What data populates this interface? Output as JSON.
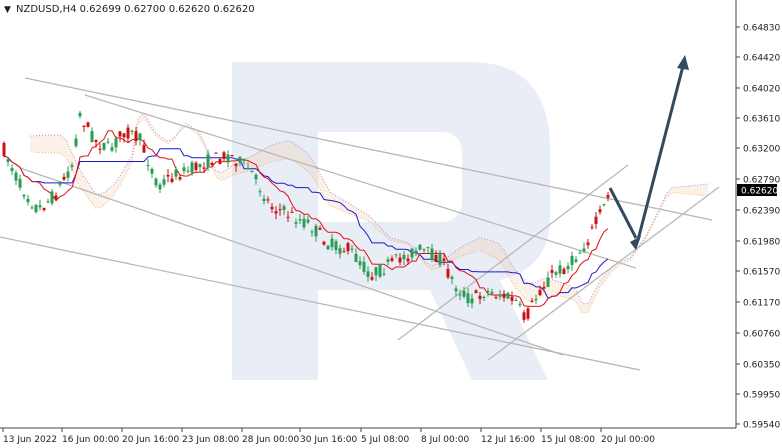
{
  "header": {
    "symbol_line": "NZDUSD,H4  0.62699 0.62700 0.62620 0.62620",
    "dropdown_glyph": "▼"
  },
  "watermark_icon": "r-letter-logo-watermark",
  "colors": {
    "bull": "#2a9d55",
    "bear": "#cc1111",
    "tenkan": "#e01010",
    "kijun": "#1a1acc",
    "cloud_orange": "#f0b27a",
    "cloud_purple": "#b18ad8",
    "trendline": "#b8b8b8",
    "forecast_arrow": "#34495e",
    "price_tag_bg": "#000000",
    "price_tag_text": "#ffffff",
    "watermark": "#e9eef6"
  },
  "price_tag": "0.62620",
  "chart_data": {
    "type": "candlestick",
    "title": "",
    "symbol": "NZDUSD",
    "timeframe": "H4",
    "ohlc_header": {
      "open": 0.62699,
      "high": 0.627,
      "low": 0.6262,
      "close": 0.6262
    },
    "y_ticks": [
      "0.64830",
      "0.64420",
      "0.64020",
      "0.63610",
      "0.63200",
      "0.62790",
      "0.62390",
      "0.61980",
      "0.61570",
      "0.61170",
      "0.60760",
      "0.60350",
      "0.59950",
      "0.59540"
    ],
    "x_ticks": [
      "13 Jun 2022",
      "16 Jun 00:00",
      "20 Jun 16:00",
      "23 Jun 08:00",
      "28 Jun 00:00",
      "30 Jun 16:00",
      "5 Jul 08:00",
      "8 Jul 00:00",
      "12 Jul 16:00",
      "15 Jul 08:00",
      "20 Jul 00:00"
    ],
    "ylim": [
      0.5954,
      0.6504
    ],
    "current_price": 0.6262,
    "grid": false,
    "legend": "none",
    "overlays": [
      "Ichimoku Kinko Hyo (tenkan, kijun, cloud)",
      "descending channel lines",
      "ascending channel lines"
    ],
    "forecast": "short pullback to the channel support near 0.6195, then rise towards 0.6450"
  }
}
